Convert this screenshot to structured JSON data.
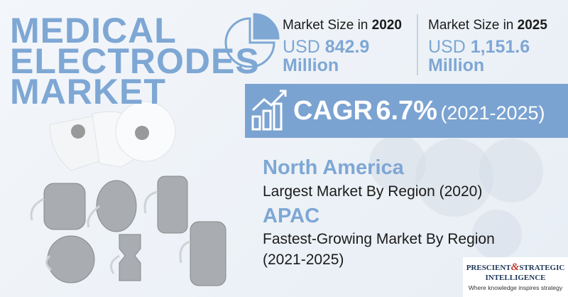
{
  "title": {
    "lines": [
      "MEDICAL",
      "ELECTRODES",
      "MARKET"
    ]
  },
  "market_size": [
    {
      "label": "Market Size in",
      "year": "2020",
      "currency": "USD",
      "amount": "842.9",
      "unit": "Million"
    },
    {
      "label": "Market Size in",
      "year": "2025",
      "currency": "USD",
      "amount": "1,151.6",
      "unit": "Million"
    }
  ],
  "cagr": {
    "label": "CAGR",
    "value": "6.7%",
    "period": "(2021-2025)"
  },
  "regions": [
    {
      "name": "North America",
      "description": [
        "Largest Market By Region (2020)"
      ]
    },
    {
      "name": "APAC",
      "description": [
        "Fastest-Growing Market By Region",
        "(2021-2025)"
      ]
    }
  ],
  "logo": {
    "left": "PRESCIENT",
    "amp": "&",
    "right": "STRATEGIC",
    "bottom": "INTELLIGENCE",
    "tagline": "Where knowledge inspires strategy"
  }
}
